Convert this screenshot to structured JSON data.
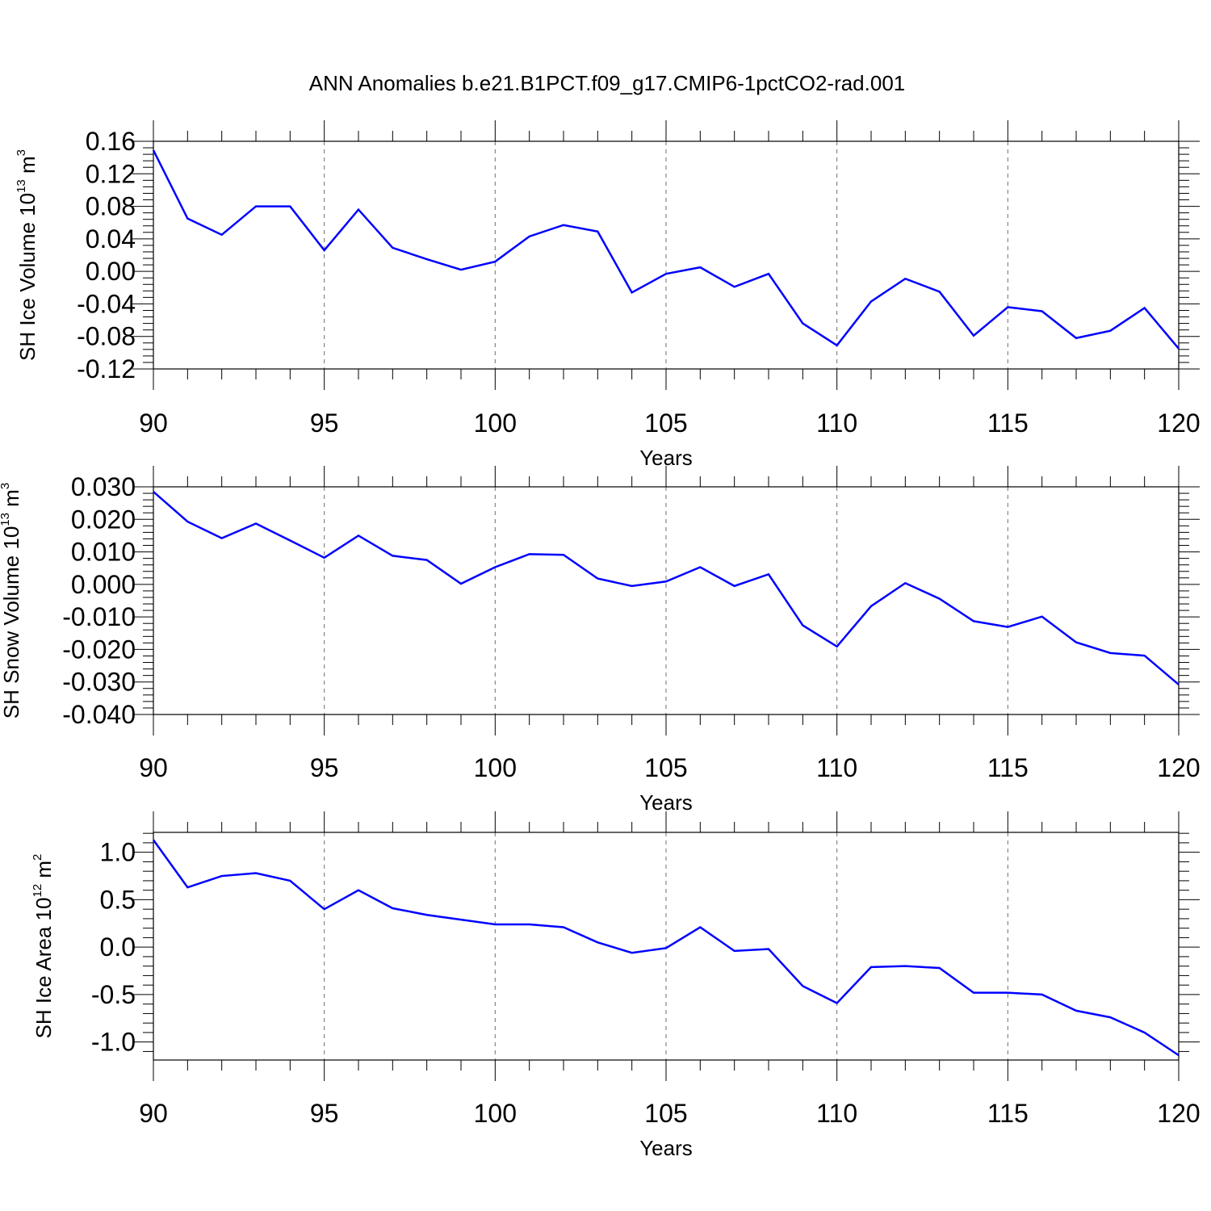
{
  "figure": {
    "title": "ANN Anomalies b.e21.B1PCT.f09_g17.CMIP6-1pctCO2-rad.001",
    "line_color": "#0000ff"
  },
  "chart_data": [
    {
      "type": "line",
      "xlabel": "Years",
      "ylabel": "SH Ice Volume 10",
      "ylabel_exponent": "13",
      "ylabel_unit": " m",
      "ylabel_unit_exponent": "3",
      "xlim": [
        90,
        120
      ],
      "ylim": [
        -0.12,
        0.16
      ],
      "x_ticks": [
        "90",
        "95",
        "100",
        "105",
        "110",
        "115",
        "120"
      ],
      "y_ticks": [
        "0.16",
        "0.12",
        "0.08",
        "0.04",
        "0.00",
        "-0.04",
        "-0.08",
        "-0.12"
      ],
      "grid": "dashed vertical at major x ticks",
      "x": [
        90,
        91,
        92,
        93,
        94,
        95,
        96,
        97,
        98,
        99,
        100,
        101,
        102,
        103,
        104,
        105,
        106,
        107,
        108,
        109,
        110,
        111,
        112,
        113,
        114,
        115,
        116,
        117,
        118,
        119,
        120
      ],
      "series": [
        {
          "values": [
            0.149,
            0.065,
            0.045,
            0.08,
            0.08,
            0.026,
            0.076,
            0.029,
            0.015,
            0.002,
            0.012,
            0.043,
            0.057,
            0.049,
            -0.026,
            -0.003,
            0.005,
            -0.019,
            -0.003,
            -0.064,
            -0.091,
            -0.037,
            -0.009,
            -0.025,
            -0.079,
            -0.044,
            -0.049,
            -0.082,
            -0.073,
            -0.045,
            -0.095
          ]
        }
      ]
    },
    {
      "type": "line",
      "xlabel": "Years",
      "ylabel": "SH Snow Volume 10",
      "ylabel_exponent": "13",
      "ylabel_unit": " m",
      "ylabel_unit_exponent": "3",
      "xlim": [
        90,
        120
      ],
      "ylim": [
        -0.04,
        0.03
      ],
      "x_ticks": [
        "90",
        "95",
        "100",
        "105",
        "110",
        "115",
        "120"
      ],
      "y_ticks": [
        "0.030",
        "0.020",
        "0.010",
        "0.000",
        "-0.010",
        "-0.020",
        "-0.030",
        "-0.040"
      ],
      "grid": "dashed vertical at major x ticks",
      "x": [
        90,
        91,
        92,
        93,
        94,
        95,
        96,
        97,
        98,
        99,
        100,
        101,
        102,
        103,
        104,
        105,
        106,
        107,
        108,
        109,
        110,
        111,
        112,
        113,
        114,
        115,
        116,
        117,
        118,
        119,
        120
      ],
      "series": [
        {
          "values": [
            0.0285,
            0.0193,
            0.0142,
            0.0187,
            0.0135,
            0.0082,
            0.015,
            0.0088,
            0.0075,
            0.0002,
            0.0053,
            0.0093,
            0.0091,
            0.0018,
            -0.0005,
            0.0009,
            0.0053,
            -0.0005,
            0.0031,
            -0.0126,
            -0.0191,
            -0.0067,
            0.0004,
            -0.0044,
            -0.0113,
            -0.0131,
            -0.0099,
            -0.0178,
            -0.0211,
            -0.0219,
            -0.0308
          ]
        }
      ]
    },
    {
      "type": "line",
      "xlabel": "Years",
      "ylabel": "SH Ice Area 10",
      "ylabel_exponent": "12",
      "ylabel_unit": " m",
      "ylabel_unit_exponent": "2",
      "xlim": [
        90,
        120
      ],
      "ylim": [
        -1.19,
        1.21
      ],
      "x_ticks": [
        "90",
        "95",
        "100",
        "105",
        "110",
        "115",
        "120"
      ],
      "y_ticks": [
        "1.0",
        "0.5",
        "0.0",
        "-0.5",
        "-1.0"
      ],
      "grid": "dashed vertical at major x ticks",
      "x": [
        90,
        91,
        92,
        93,
        94,
        95,
        96,
        97,
        98,
        99,
        100,
        101,
        102,
        103,
        104,
        105,
        106,
        107,
        108,
        109,
        110,
        111,
        112,
        113,
        114,
        115,
        116,
        117,
        118,
        119,
        120
      ],
      "series": [
        {
          "values": [
            1.13,
            0.63,
            0.75,
            0.78,
            0.7,
            0.4,
            0.6,
            0.41,
            0.34,
            0.29,
            0.24,
            0.24,
            0.21,
            0.05,
            -0.06,
            -0.01,
            0.21,
            -0.04,
            -0.02,
            -0.41,
            -0.59,
            -0.21,
            -0.2,
            -0.22,
            -0.48,
            -0.48,
            -0.5,
            -0.67,
            -0.74,
            -0.9,
            -1.14
          ]
        }
      ]
    }
  ]
}
